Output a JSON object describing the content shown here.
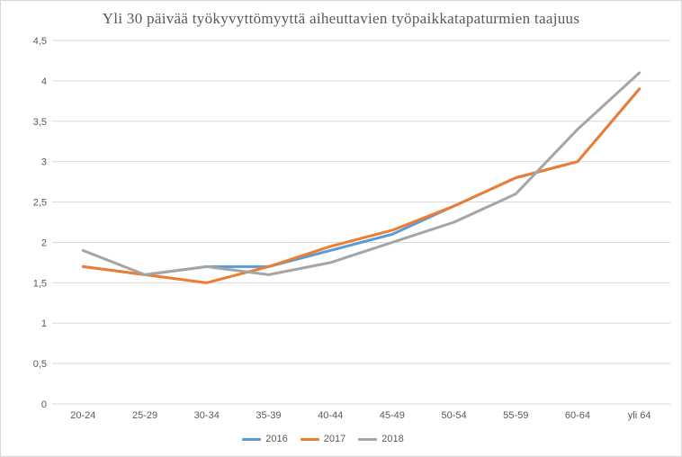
{
  "window": {
    "background": "#FFFFFF",
    "border_color": "#D7D7D7"
  },
  "chart_data": {
    "type": "line",
    "title": "Yli 30 päivää työkyvyttömyyttä aiheuttavien työpaikkatapaturmien taajuus",
    "title_color": "#595959",
    "categories": [
      "20-24",
      "25-29",
      "30-34",
      "35-39",
      "40-44",
      "45-49",
      "50-54",
      "55-59",
      "60-64",
      "yli 64"
    ],
    "series": [
      {
        "name": "2016",
        "color": "#5B9BD5",
        "values": [
          1.7,
          1.6,
          1.7,
          1.7,
          1.9,
          2.1,
          2.45,
          2.8,
          3.0,
          3.9
        ]
      },
      {
        "name": "2017",
        "color": "#ED7D31",
        "values": [
          1.7,
          1.6,
          1.5,
          1.7,
          1.95,
          2.15,
          2.45,
          2.8,
          3.0,
          3.9
        ]
      },
      {
        "name": "2018",
        "color": "#A5A5A5",
        "values": [
          1.9,
          1.6,
          1.7,
          1.6,
          1.75,
          2.0,
          2.25,
          2.6,
          3.4,
          4.1
        ]
      }
    ],
    "ylim": [
      0,
      4.5
    ],
    "ytick_step": 0.5,
    "ytick_labels": [
      "4,5",
      "4",
      "3,5",
      "3",
      "2,5",
      "2",
      "1,5",
      "1",
      "0,5",
      "0"
    ],
    "grid": "horizontal",
    "gridline_color": "#D9D9D9",
    "axis_label_color": "#595959",
    "legend_position": "bottom",
    "legend_entries": [
      "2016",
      "2017",
      "2018"
    ]
  }
}
